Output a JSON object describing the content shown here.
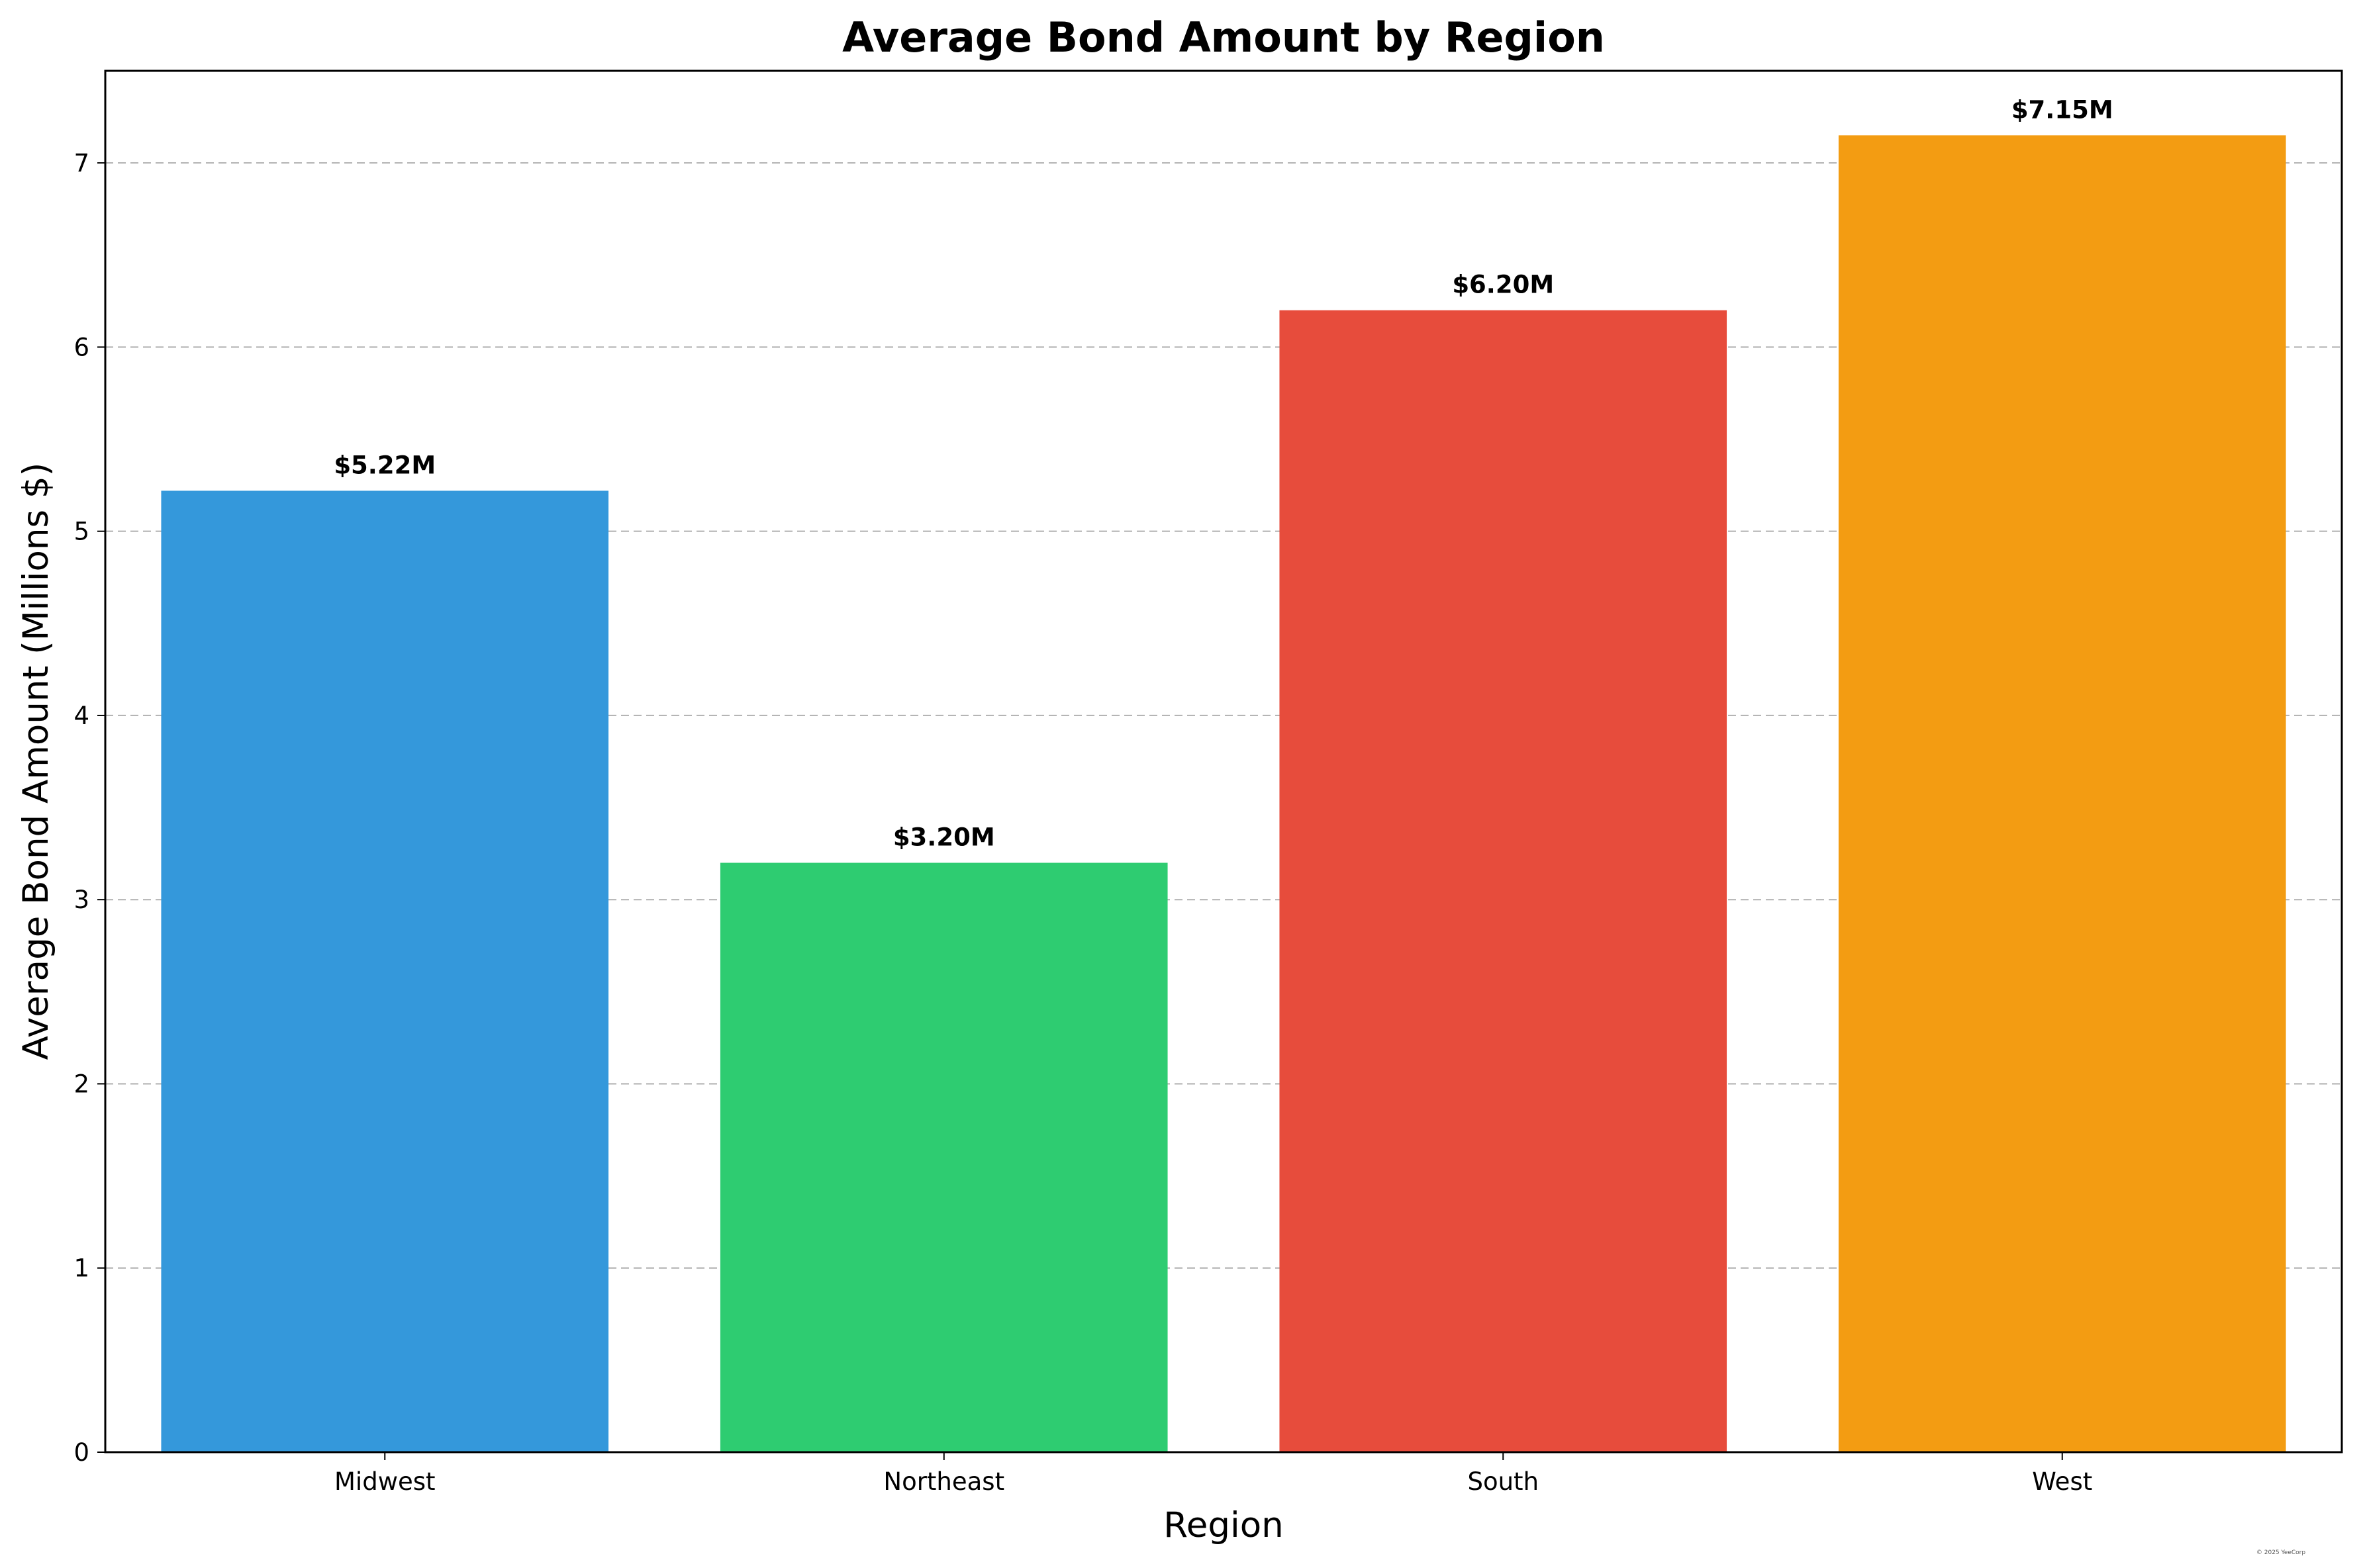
{
  "chart_data": {
    "type": "bar",
    "title": "Average Bond Amount by Region",
    "xlabel": "Region",
    "ylabel": "Average Bond Amount (Millions $)",
    "categories": [
      "Midwest",
      "Northeast",
      "South",
      "West"
    ],
    "values": [
      5.22,
      3.2,
      6.2,
      7.15
    ],
    "data_labels": [
      "$5.22M",
      "$3.20M",
      "$6.20M",
      "$7.15M"
    ],
    "colors": [
      "#3498db",
      "#2ecc71",
      "#e74c3c",
      "#f39c12"
    ],
    "ylim": [
      0,
      7.5
    ],
    "yticks": [
      "0",
      "1",
      "2",
      "3",
      "4",
      "5",
      "6",
      "7"
    ],
    "grid": "y-dashed",
    "legend": "none"
  },
  "watermark": "© 2025 YeeCorp"
}
